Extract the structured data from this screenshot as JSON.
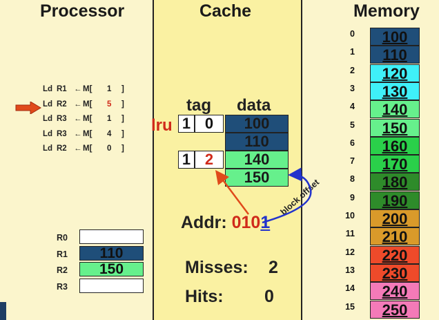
{
  "titles": {
    "processor": "Processor",
    "cache": "Cache",
    "memory": "Memory"
  },
  "instructions": [
    {
      "op": "Ld",
      "reg": "R1",
      "arrow": "←",
      "mem": "M[",
      "val": "1",
      "close": "]"
    },
    {
      "op": "Ld",
      "reg": "R2",
      "arrow": "←",
      "mem": "M[",
      "val": "5",
      "close": "]"
    },
    {
      "op": "Ld",
      "reg": "R3",
      "arrow": "←",
      "mem": "M[",
      "val": "1",
      "close": "]"
    },
    {
      "op": "Ld",
      "reg": "R3",
      "arrow": "←",
      "mem": "M[",
      "val": "4",
      "close": "]"
    },
    {
      "op": "Ld",
      "reg": "R2",
      "arrow": "←",
      "mem": "M[",
      "val": "0",
      "close": "]"
    }
  ],
  "current_instruction": 1,
  "registers": [
    {
      "name": "R0",
      "value": "",
      "color": "#ffffff"
    },
    {
      "name": "R1",
      "value": "110",
      "color": "#1f4e79"
    },
    {
      "name": "R2",
      "value": "150",
      "color": "#66f08c"
    },
    {
      "name": "R3",
      "value": "",
      "color": "#ffffff"
    }
  ],
  "cache": {
    "tag_header": "tag",
    "data_header": "data",
    "lru_label": "lru",
    "lines": [
      {
        "valid": "1",
        "tag": "0",
        "tag_color": "#111111",
        "data": [
          "100",
          "110"
        ],
        "data_colors": [
          "#1f4e79",
          "#1f4e79"
        ]
      },
      {
        "valid": "1",
        "tag": "2",
        "tag_color": "#d02a1a",
        "data": [
          "140",
          "150"
        ],
        "data_colors": [
          "#66f08c",
          "#66f08c"
        ]
      }
    ],
    "addr_label": "Addr:",
    "addr_tag_bits": "010",
    "addr_offset_bit": "1",
    "block_offset_label": "block offset",
    "misses_label": "Misses:",
    "misses": "2",
    "hits_label": "Hits:",
    "hits": "0"
  },
  "memory": [
    {
      "index": "0",
      "value": "100",
      "color": "#1f4e79"
    },
    {
      "index": "1",
      "value": "110",
      "color": "#1f4e79"
    },
    {
      "index": "2",
      "value": "120",
      "color": "#3ff0f8"
    },
    {
      "index": "3",
      "value": "130",
      "color": "#3ff0f8"
    },
    {
      "index": "4",
      "value": "140",
      "color": "#66f08c"
    },
    {
      "index": "5",
      "value": "150",
      "color": "#66f08c"
    },
    {
      "index": "6",
      "value": "160",
      "color": "#2ad04a"
    },
    {
      "index": "7",
      "value": "170",
      "color": "#2ad04a"
    },
    {
      "index": "8",
      "value": "180",
      "color": "#2e8b2a"
    },
    {
      "index": "9",
      "value": "190",
      "color": "#2e8b2a"
    },
    {
      "index": "10",
      "value": "200",
      "color": "#d99a2a"
    },
    {
      "index": "11",
      "value": "210",
      "color": "#d99a2a"
    },
    {
      "index": "12",
      "value": "220",
      "color": "#ee4a2a"
    },
    {
      "index": "13",
      "value": "230",
      "color": "#ee4a2a"
    },
    {
      "index": "14",
      "value": "240",
      "color": "#f47ab8"
    },
    {
      "index": "15",
      "value": "250",
      "color": "#f47ab8"
    }
  ],
  "colors": {
    "accent_red": "#d02a1a",
    "arrow_blue": "#2233cc",
    "pointer_red": "#e04a1a"
  }
}
